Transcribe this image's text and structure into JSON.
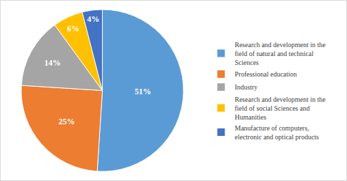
{
  "chart_data": {
    "type": "pie",
    "categories": [
      "Research and development in the field of natural and technical Sciences",
      "Professional education",
      "Industry",
      "Research and development in the field of social Sciences and Humanities",
      "Manufacture of computers, electronic and optical products"
    ],
    "values": [
      51,
      25,
      14,
      6,
      4
    ],
    "value_labels": [
      "51%",
      "25%",
      "14%",
      "6%",
      "4%"
    ],
    "colors": [
      "#5b9bd5",
      "#ed7d31",
      "#a5a5a5",
      "#ffc000",
      "#4472c4"
    ],
    "data_labels": true,
    "legend": "right"
  }
}
